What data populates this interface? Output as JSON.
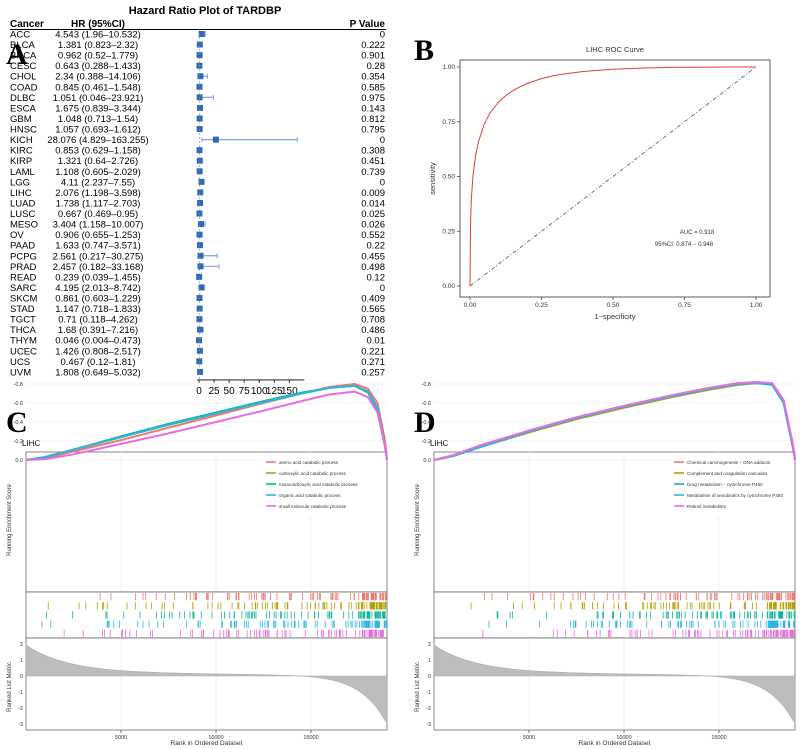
{
  "panel_letters": [
    "A",
    "B",
    "C",
    "D"
  ],
  "chart_data": [
    {
      "panel": "A",
      "type": "forest",
      "title": "Hazard Ratio Plot of TARDBP",
      "columns": [
        "Cancer",
        "HR (95%CI)",
        "P Value"
      ],
      "rows": [
        {
          "cancer": "ACC",
          "hr_ci": "4.543 (1.96–10.532)",
          "p": "0",
          "hr": 4.543,
          "lo": 1.96,
          "hi": 10.532
        },
        {
          "cancer": "BLCA",
          "hr_ci": "1.381 (0.823–2.32)",
          "p": "0.222",
          "hr": 1.381,
          "lo": 0.823,
          "hi": 2.32
        },
        {
          "cancer": "BRCA",
          "hr_ci": "0.962 (0.52–1.779)",
          "p": "0.901",
          "hr": 0.962,
          "lo": 0.52,
          "hi": 1.779
        },
        {
          "cancer": "CESC",
          "hr_ci": "0.643 (0.288–1.433)",
          "p": "0.28",
          "hr": 0.643,
          "lo": 0.288,
          "hi": 1.433
        },
        {
          "cancer": "CHOL",
          "hr_ci": "2.34 (0.388–14.106)",
          "p": "0.354",
          "hr": 2.34,
          "lo": 0.388,
          "hi": 14.106
        },
        {
          "cancer": "COAD",
          "hr_ci": "0.845 (0.461–1.548)",
          "p": "0.585",
          "hr": 0.845,
          "lo": 0.461,
          "hi": 1.548
        },
        {
          "cancer": "DLBC",
          "hr_ci": "1.051 (0.046–23.921)",
          "p": "0.975",
          "hr": 1.051,
          "lo": 0.046,
          "hi": 23.921
        },
        {
          "cancer": "ESCA",
          "hr_ci": "1.675 (0.839–3.344)",
          "p": "0.143",
          "hr": 1.675,
          "lo": 0.839,
          "hi": 3.344
        },
        {
          "cancer": "GBM",
          "hr_ci": "1.048 (0.713–1.54)",
          "p": "0.812",
          "hr": 1.048,
          "lo": 0.713,
          "hi": 1.54
        },
        {
          "cancer": "HNSC",
          "hr_ci": "1.057 (0.693–1.612)",
          "p": "0.795",
          "hr": 1.057,
          "lo": 0.693,
          "hi": 1.612
        },
        {
          "cancer": "KICH",
          "hr_ci": "28.076 (4.829–163.255)",
          "p": "0",
          "hr": 28.076,
          "lo": 4.829,
          "hi": 163.255
        },
        {
          "cancer": "KIRC",
          "hr_ci": "0.853 (0.629–1.158)",
          "p": "0.308",
          "hr": 0.853,
          "lo": 0.629,
          "hi": 1.158
        },
        {
          "cancer": "KIRP",
          "hr_ci": "1.321 (0.64–2.726)",
          "p": "0.451",
          "hr": 1.321,
          "lo": 0.64,
          "hi": 2.726
        },
        {
          "cancer": "LAML",
          "hr_ci": "1.108 (0.605–2.029)",
          "p": "0.739",
          "hr": 1.108,
          "lo": 0.605,
          "hi": 2.029
        },
        {
          "cancer": "LGG",
          "hr_ci": "4.11 (2.237–7.55)",
          "p": "0",
          "hr": 4.11,
          "lo": 2.237,
          "hi": 7.55
        },
        {
          "cancer": "LIHC",
          "hr_ci": "2.076 (1.198–3.598)",
          "p": "0.009",
          "hr": 2.076,
          "lo": 1.198,
          "hi": 3.598
        },
        {
          "cancer": "LUAD",
          "hr_ci": "1.738 (1.117–2.703)",
          "p": "0.014",
          "hr": 1.738,
          "lo": 1.117,
          "hi": 2.703
        },
        {
          "cancer": "LUSC",
          "hr_ci": "0.667 (0.469–0.95)",
          "p": "0.025",
          "hr": 0.667,
          "lo": 0.469,
          "hi": 0.95
        },
        {
          "cancer": "MESO",
          "hr_ci": "3.404 (1.158–10.007)",
          "p": "0.026",
          "hr": 3.404,
          "lo": 1.158,
          "hi": 10.007
        },
        {
          "cancer": "OV",
          "hr_ci": "0.906 (0.655–1.253)",
          "p": "0.552",
          "hr": 0.906,
          "lo": 0.655,
          "hi": 1.253
        },
        {
          "cancer": "PAAD",
          "hr_ci": "1.633 (0.747–3.571)",
          "p": "0.22",
          "hr": 1.633,
          "lo": 0.747,
          "hi": 3.571
        },
        {
          "cancer": "PCPG",
          "hr_ci": "2.561 (0.217–30.275)",
          "p": "0.455",
          "hr": 2.561,
          "lo": 0.217,
          "hi": 30.275
        },
        {
          "cancer": "PRAD",
          "hr_ci": "2.457 (0.182–33.168)",
          "p": "0.498",
          "hr": 2.457,
          "lo": 0.182,
          "hi": 33.168
        },
        {
          "cancer": "READ",
          "hr_ci": "0.239 (0.039–1.455)",
          "p": "0.12",
          "hr": 0.239,
          "lo": 0.039,
          "hi": 1.455
        },
        {
          "cancer": "SARC",
          "hr_ci": "4.195 (2.013–8.742)",
          "p": "0",
          "hr": 4.195,
          "lo": 2.013,
          "hi": 8.742
        },
        {
          "cancer": "SKCM",
          "hr_ci": "0.861 (0.603–1.229)",
          "p": "0.409",
          "hr": 0.861,
          "lo": 0.603,
          "hi": 1.229
        },
        {
          "cancer": "STAD",
          "hr_ci": "1.147 (0.718–1.833)",
          "p": "0.565",
          "hr": 1.147,
          "lo": 0.718,
          "hi": 1.833
        },
        {
          "cancer": "TGCT",
          "hr_ci": "0.71 (0.118–4.262)",
          "p": "0.708",
          "hr": 0.71,
          "lo": 0.118,
          "hi": 4.262
        },
        {
          "cancer": "THCA",
          "hr_ci": "1.68 (0.391–7.216)",
          "p": "0.486",
          "hr": 1.68,
          "lo": 0.391,
          "hi": 7.216
        },
        {
          "cancer": "THYM",
          "hr_ci": "0.046 (0.004–0.473)",
          "p": "0.01",
          "hr": 0.046,
          "lo": 0.004,
          "hi": 0.473
        },
        {
          "cancer": "UCEC",
          "hr_ci": "1.426 (0.808–2.517)",
          "p": "0.221",
          "hr": 1.426,
          "lo": 0.808,
          "hi": 2.517
        },
        {
          "cancer": "UCS",
          "hr_ci": "0.467 (0.12–1.81)",
          "p": "0.271",
          "hr": 0.467,
          "lo": 0.12,
          "hi": 1.81
        },
        {
          "cancer": "UVM",
          "hr_ci": "1.808 (0.649–5.032)",
          "p": "0.257",
          "hr": 1.808,
          "lo": 0.649,
          "hi": 5.032
        }
      ],
      "x_ticks": [
        0,
        25,
        50,
        75,
        100,
        125,
        150
      ],
      "xlim": [
        -3,
        175
      ],
      "box_color": "#2e6db4",
      "ci_color": "#7ea6d6"
    },
    {
      "panel": "B",
      "type": "line",
      "title": "LIHC ROC Curve",
      "xlabel": "1−specificity",
      "ylabel": "sensitivity",
      "xlim": [
        0,
        1
      ],
      "ylim": [
        0,
        1
      ],
      "x_ticks": [
        0,
        0.25,
        0.5,
        0.75,
        1.0
      ],
      "x_tick_labels": [
        "0.00",
        "0.25",
        "0.50",
        "0.75",
        "1.00"
      ],
      "y_ticks": [
        0,
        0.25,
        0.5,
        0.75,
        1.0
      ],
      "y_tick_labels": [
        "0.00",
        "0.25",
        "0.50",
        "0.75",
        "1.00"
      ],
      "roc_x": [
        0,
        0.002,
        0.005,
        0.01,
        0.02,
        0.03,
        0.05,
        0.07,
        0.1,
        0.13,
        0.16,
        0.2,
        0.25,
        0.3,
        0.35,
        0.4,
        0.5,
        0.6,
        0.7,
        0.8,
        0.9,
        1.0
      ],
      "roc_y": [
        0,
        0.3,
        0.4,
        0.5,
        0.6,
        0.66,
        0.74,
        0.79,
        0.84,
        0.875,
        0.9,
        0.925,
        0.947,
        0.962,
        0.972,
        0.98,
        0.99,
        0.995,
        0.998,
        0.999,
        1.0,
        1.0
      ],
      "annotations": [
        "AUC = 0.918",
        "95%CI: 0.874 − 0.948"
      ],
      "roc_color": "#e0403a",
      "diag_color": "#555555"
    },
    {
      "panel": "C",
      "type": "line",
      "subtitle": "LIHC",
      "ylabel": "Running Enrichment Score",
      "ylabel2": "Ranked List Metric",
      "xlabel": "Rank in Ordered Dataset",
      "xlim": [
        0,
        19000
      ],
      "x_ticks": [
        5000,
        10000,
        15000
      ],
      "x_tick_labels": [
        "5000",
        "10000",
        "15000"
      ],
      "y_ticks": [
        0,
        -0.2,
        -0.4,
        -0.6,
        -0.8
      ],
      "y_tick_labels": [
        "0.0",
        "-0.2",
        "-0.4",
        "-0.6",
        "-0.8"
      ],
      "y2_ticks": [
        2,
        1,
        0,
        -1,
        -2,
        -3
      ],
      "y2_tick_labels": [
        "2",
        "1",
        "0",
        "-1",
        "-2",
        "-3"
      ],
      "series": [
        {
          "name": "amino acid catabolic process",
          "color": "#f0776e",
          "x": [
            0,
            1000,
            2500,
            5000,
            7500,
            10000,
            12500,
            14500,
            16000,
            17300,
            18000,
            18500,
            18900,
            19000
          ],
          "y": [
            0,
            -0.02,
            -0.09,
            -0.21,
            -0.34,
            -0.47,
            -0.6,
            -0.7,
            -0.77,
            -0.8,
            -0.75,
            -0.6,
            -0.2,
            0
          ]
        },
        {
          "name": "carboxylic acid catabolic process",
          "color": "#b3a000",
          "x": [
            0,
            1000,
            2500,
            5000,
            7500,
            10000,
            12500,
            14500,
            16000,
            17300,
            18000,
            18500,
            18900,
            19000
          ],
          "y": [
            0,
            -0.03,
            -0.11,
            -0.24,
            -0.37,
            -0.49,
            -0.61,
            -0.7,
            -0.76,
            -0.78,
            -0.72,
            -0.55,
            -0.15,
            0
          ]
        },
        {
          "name": "monocarboxylic acid catabolic process",
          "color": "#12b59a",
          "x": [
            0,
            1000,
            2500,
            5000,
            7500,
            10000,
            12500,
            14500,
            16000,
            17300,
            18000,
            18500,
            18900,
            19000
          ],
          "y": [
            0,
            -0.03,
            -0.11,
            -0.25,
            -0.38,
            -0.5,
            -0.62,
            -0.71,
            -0.76,
            -0.78,
            -0.71,
            -0.53,
            -0.13,
            0
          ]
        },
        {
          "name": "organic acid catabolic process",
          "color": "#2bb5e5",
          "x": [
            0,
            1000,
            2500,
            5000,
            7500,
            10000,
            12500,
            14500,
            16000,
            17300,
            18000,
            18500,
            18900,
            19000
          ],
          "y": [
            0,
            -0.03,
            -0.11,
            -0.24,
            -0.37,
            -0.49,
            -0.61,
            -0.7,
            -0.76,
            -0.78,
            -0.72,
            -0.55,
            -0.14,
            0
          ]
        },
        {
          "name": "small molecule catabolic process",
          "color": "#e86de0",
          "x": [
            0,
            1000,
            2500,
            5000,
            7500,
            10000,
            12500,
            14500,
            16000,
            17300,
            18000,
            18500,
            18900,
            19000
          ],
          "y": [
            0,
            -0.01,
            -0.06,
            -0.17,
            -0.28,
            -0.4,
            -0.52,
            -0.62,
            -0.69,
            -0.72,
            -0.66,
            -0.5,
            -0.15,
            0
          ]
        }
      ]
    },
    {
      "panel": "D",
      "type": "line",
      "subtitle": "LIHC",
      "ylabel": "Running Enrichment Score",
      "ylabel2": "Ranked List Metric",
      "xlabel": "Rank in Ordered Dataset",
      "xlim": [
        0,
        19000
      ],
      "x_ticks": [
        5000,
        10000,
        15000
      ],
      "x_tick_labels": [
        "5000",
        "10000",
        "15000"
      ],
      "y_ticks": [
        0,
        -0.2,
        -0.4,
        -0.6,
        -0.8
      ],
      "y_tick_labels": [
        "0.0",
        "-0.2",
        "-0.4",
        "-0.6",
        "-0.8"
      ],
      "y2_ticks": [
        2,
        1,
        0,
        -1,
        -2,
        -3
      ],
      "y2_tick_labels": [
        "2",
        "1",
        "0",
        "-1",
        "-2",
        "-3"
      ],
      "series": [
        {
          "name": "Chemical carcinogenesis − DNA adducts",
          "color": "#f0776e",
          "x": [
            0,
            1000,
            2500,
            5000,
            7500,
            10000,
            12500,
            14500,
            16000,
            17000,
            17800,
            18400,
            18900,
            19000
          ],
          "y": [
            0,
            -0.05,
            -0.15,
            -0.3,
            -0.44,
            -0.56,
            -0.67,
            -0.75,
            -0.8,
            -0.82,
            -0.8,
            -0.62,
            -0.15,
            0
          ]
        },
        {
          "name": "Complement and coagulation cascades",
          "color": "#b3a000",
          "x": [
            0,
            1000,
            2500,
            5000,
            7500,
            10000,
            12500,
            14500,
            16000,
            17000,
            17800,
            18400,
            18900,
            19000
          ],
          "y": [
            0,
            -0.04,
            -0.14,
            -0.29,
            -0.43,
            -0.55,
            -0.66,
            -0.74,
            -0.79,
            -0.81,
            -0.79,
            -0.6,
            -0.12,
            0
          ]
        },
        {
          "name": "Drug metabolism − cytochrome P450",
          "color": "#12b59a",
          "x": [
            0,
            1000,
            2500,
            5000,
            7500,
            10000,
            12500,
            14500,
            16000,
            17000,
            17800,
            18400,
            18900,
            19000
          ],
          "y": [
            0,
            -0.05,
            -0.15,
            -0.31,
            -0.45,
            -0.57,
            -0.68,
            -0.76,
            -0.81,
            -0.82,
            -0.8,
            -0.61,
            -0.13,
            0
          ]
        },
        {
          "name": "Metabolism of xenobiotics by cytochrome P450",
          "color": "#2bb5e5",
          "x": [
            0,
            1000,
            2500,
            5000,
            7500,
            10000,
            12500,
            14500,
            16000,
            17000,
            17800,
            18400,
            18900,
            19000
          ],
          "y": [
            0,
            -0.04,
            -0.14,
            -0.3,
            -0.44,
            -0.56,
            -0.67,
            -0.75,
            -0.8,
            -0.81,
            -0.79,
            -0.6,
            -0.12,
            0
          ]
        },
        {
          "name": "Retinol metabolism",
          "color": "#e86de0",
          "x": [
            0,
            1000,
            2500,
            5000,
            7500,
            10000,
            12500,
            14500,
            16000,
            17000,
            17800,
            18400,
            18900,
            19000
          ],
          "y": [
            0,
            -0.05,
            -0.16,
            -0.31,
            -0.45,
            -0.57,
            -0.68,
            -0.76,
            -0.81,
            -0.82,
            -0.81,
            -0.63,
            -0.16,
            0
          ]
        }
      ]
    }
  ]
}
